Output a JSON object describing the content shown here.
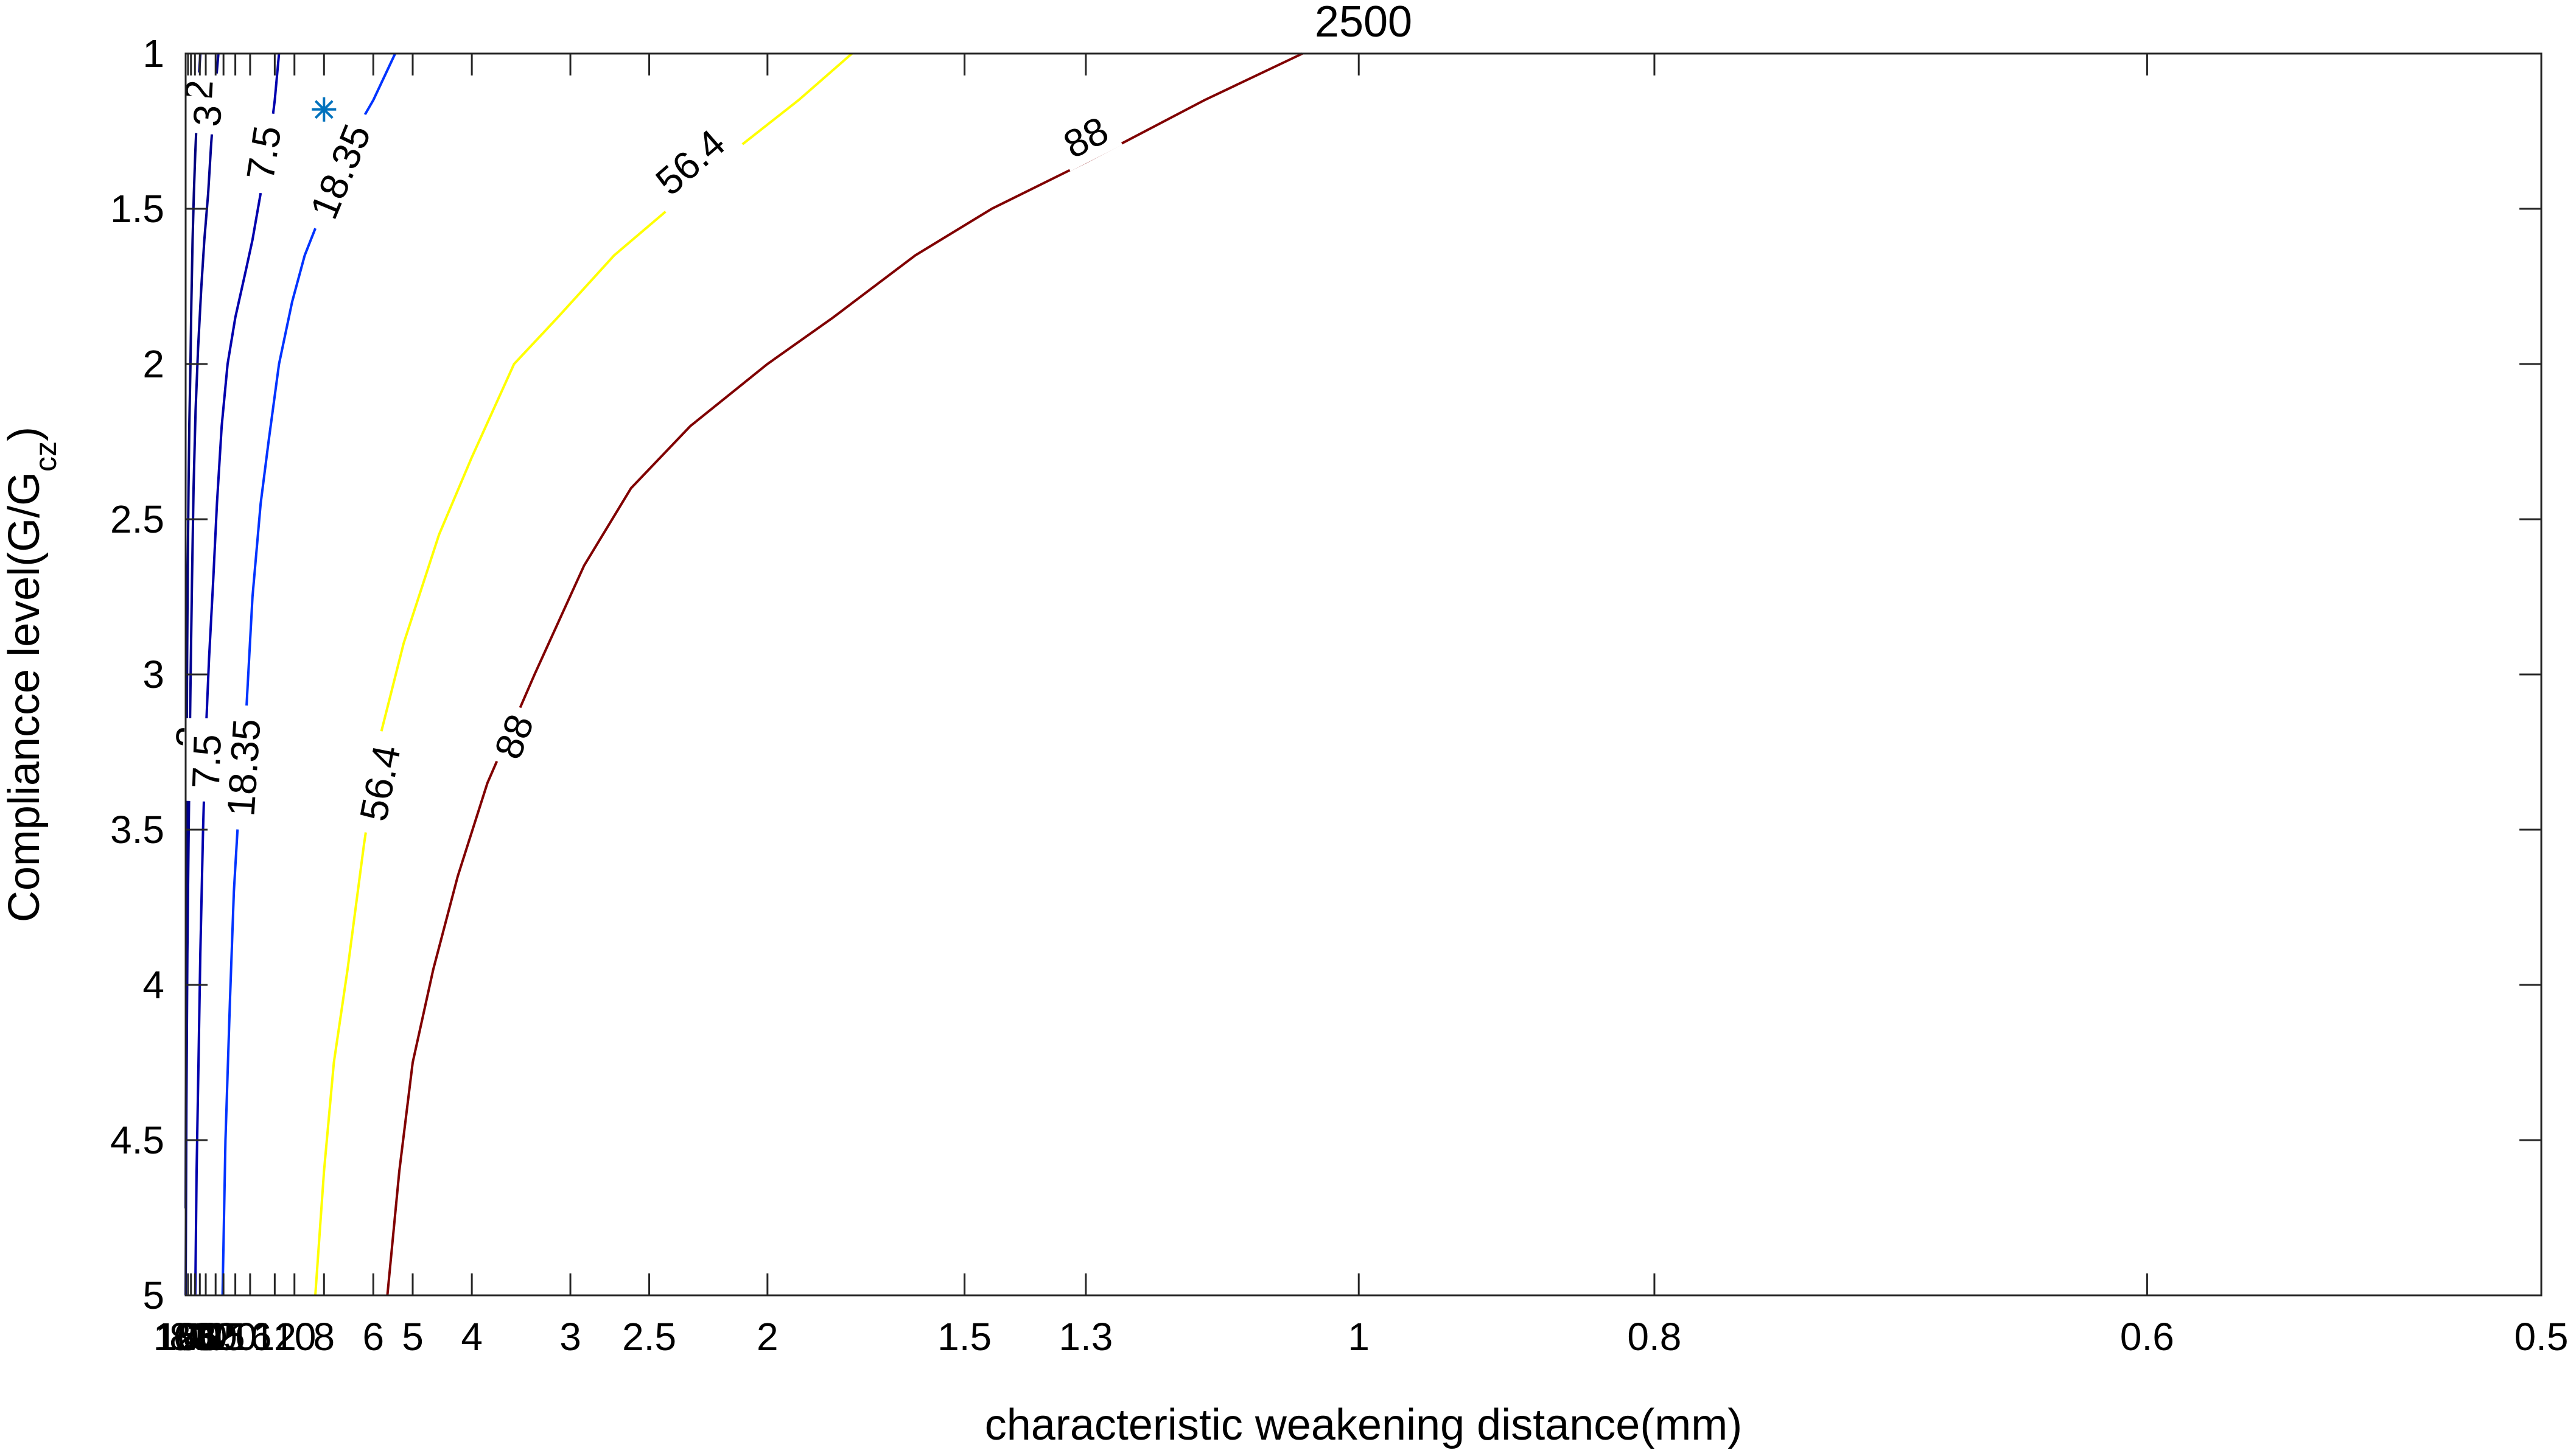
{
  "chart_data": {
    "type": "contour",
    "title": "2500",
    "xlabel": "characteristic weakening distance(mm)",
    "ylabel": {
      "main": "Compliancce level(G/G",
      "subscript": "cz",
      "close": ")"
    },
    "x_scale": "reciprocal",
    "x_ticks": [
      125,
      100,
      80,
      63,
      50,
      40,
      30,
      25,
      20,
      16,
      12,
      10,
      8,
      6,
      5,
      4,
      3,
      2.5,
      2,
      1.5,
      1.3,
      1,
      0.8,
      0.6,
      0.5
    ],
    "x_tick_labels": [
      "125",
      "100",
      "80",
      "63",
      "50",
      "40",
      "30",
      "25",
      "20",
      "16",
      "12",
      "10",
      "8",
      "6",
      "5",
      "4",
      "3",
      "2.5",
      "2",
      "1.5",
      "1.3",
      "1",
      "0.8",
      "0.6",
      "0.5"
    ],
    "xlim": [
      125,
      0.5
    ],
    "y_ticks": [
      1,
      1.5,
      2,
      2.5,
      3,
      3.5,
      4,
      4.5,
      5
    ],
    "y_tick_labels": [
      "1",
      "1.5",
      "2",
      "2.5",
      "3",
      "3.5",
      "4",
      "4.5",
      "5"
    ],
    "ylim": [
      1,
      5
    ],
    "y_reversed": true,
    "grid": false,
    "marker": {
      "x": 8,
      "y": 1.18,
      "symbol": "*",
      "color": "#0072BD"
    },
    "series": [
      {
        "level": "2",
        "color": "#00007F",
        "points": [
          [
            125,
            4.72
          ],
          [
            120,
            4.2
          ],
          [
            115,
            3.55
          ],
          [
            112,
            3.2
          ],
          [
            108,
            2.95
          ],
          [
            102,
            2.65
          ],
          [
            96,
            2.4
          ],
          [
            90,
            2.2
          ],
          [
            83,
            2.0
          ],
          [
            78,
            1.8
          ],
          [
            72,
            1.6
          ],
          [
            67,
            1.45
          ],
          [
            62,
            1.32
          ],
          [
            57,
            1.2
          ],
          [
            53,
            1.1
          ],
          [
            49,
            1.0
          ]
        ],
        "labels": [
          {
            "x": 116,
            "y": 3.2
          },
          {
            "x": 52,
            "y": 1.12
          }
        ]
      },
      {
        "level": "3",
        "color": "#000092",
        "points": [
          [
            125,
            5.0
          ],
          [
            116,
            4.4
          ],
          [
            106,
            3.9
          ],
          [
            96,
            3.55
          ],
          [
            88,
            3.25
          ],
          [
            82,
            3.0
          ],
          [
            75,
            2.7
          ],
          [
            68,
            2.4
          ],
          [
            61,
            2.15
          ],
          [
            54,
            1.95
          ],
          [
            47,
            1.75
          ],
          [
            42,
            1.6
          ],
          [
            37,
            1.45
          ],
          [
            34,
            1.3
          ],
          [
            31,
            1.15
          ],
          [
            28,
            1.0
          ]
        ],
        "labels": [
          {
            "x": 87,
            "y": 3.2
          },
          {
            "x": 38,
            "y": 1.2
          }
        ]
      },
      {
        "level": "7.5",
        "color": "#0000AD",
        "points": [
          [
            62,
            5.0
          ],
          [
            58,
            4.6
          ],
          [
            53,
            4.25
          ],
          [
            49,
            3.9
          ],
          [
            44,
            3.5
          ],
          [
            40,
            3.2
          ],
          [
            36,
            2.95
          ],
          [
            32,
            2.7
          ],
          [
            29,
            2.45
          ],
          [
            26,
            2.2
          ],
          [
            23,
            2.0
          ],
          [
            20,
            1.85
          ],
          [
            17,
            1.7
          ],
          [
            15.5,
            1.6
          ],
          [
            14,
            1.45
          ],
          [
            13,
            1.35
          ],
          [
            12,
            1.15
          ],
          [
            11.5,
            1.0
          ]
        ],
        "labels": [
          {
            "x": 39,
            "y": 3.28
          },
          {
            "x": 13.5,
            "y": 1.32
          }
        ]
      },
      {
        "level": "18.35",
        "color": "#0033FF",
        "points": [
          [
            25.5,
            5.0
          ],
          [
            24,
            4.5
          ],
          [
            22,
            4.05
          ],
          [
            20.5,
            3.7
          ],
          [
            19,
            3.45
          ],
          [
            17,
            3.15
          ],
          [
            15.5,
            2.75
          ],
          [
            14,
            2.45
          ],
          [
            12.8,
            2.25
          ],
          [
            11.5,
            2.0
          ],
          [
            10.2,
            1.8
          ],
          [
            9.2,
            1.65
          ],
          [
            8.4,
            1.55
          ],
          [
            7.5,
            1.4
          ],
          [
            6.6,
            1.25
          ],
          [
            6.0,
            1.15
          ],
          [
            5.4,
            1.0
          ]
        ],
        "labels": [
          {
            "x": 17.5,
            "y": 3.3
          },
          {
            "x": 7.2,
            "y": 1.38
          }
        ]
      },
      {
        "level": "56.4",
        "color": "#FFFF00",
        "points": [
          [
            8.5,
            5.0
          ],
          [
            8.0,
            4.6
          ],
          [
            7.5,
            4.25
          ],
          [
            6.9,
            3.95
          ],
          [
            6.3,
            3.55
          ],
          [
            5.8,
            3.2
          ],
          [
            5.2,
            2.9
          ],
          [
            4.5,
            2.55
          ],
          [
            4.0,
            2.3
          ],
          [
            3.5,
            2.0
          ],
          [
            3.1,
            1.85
          ],
          [
            2.7,
            1.65
          ],
          [
            2.4,
            1.5
          ],
          [
            2.1,
            1.3
          ],
          [
            1.9,
            1.15
          ],
          [
            1.75,
            1.0
          ]
        ],
        "labels": [
          {
            "x": 5.8,
            "y": 3.35
          },
          {
            "x": 2.3,
            "y": 1.35
          }
        ]
      },
      {
        "level": "88",
        "color": "#800000",
        "points": [
          [
            5.6,
            5.0
          ],
          [
            5.3,
            4.6
          ],
          [
            5.0,
            4.25
          ],
          [
            4.6,
            3.95
          ],
          [
            4.2,
            3.65
          ],
          [
            3.8,
            3.35
          ],
          [
            3.3,
            3.0
          ],
          [
            2.9,
            2.65
          ],
          [
            2.6,
            2.4
          ],
          [
            2.3,
            2.2
          ],
          [
            2.0,
            2.0
          ],
          [
            1.8,
            1.85
          ],
          [
            1.6,
            1.65
          ],
          [
            1.45,
            1.5
          ],
          [
            1.3,
            1.35
          ],
          [
            1.15,
            1.15
          ],
          [
            1.05,
            1.0
          ]
        ],
        "labels": [
          {
            "x": 3.5,
            "y": 3.2
          },
          {
            "x": 1.3,
            "y": 1.27
          }
        ]
      }
    ]
  }
}
